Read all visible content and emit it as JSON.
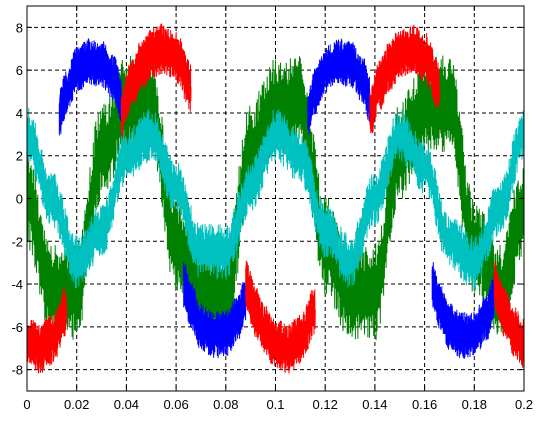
{
  "chart_data": {
    "type": "line",
    "title": "",
    "xlabel": "",
    "ylabel": "",
    "xlim": [
      0,
      0.2
    ],
    "ylim": [
      -9,
      9
    ],
    "grid": true,
    "grid_style": "dashed",
    "x_ticks": [
      0,
      0.02,
      0.04,
      0.06,
      0.08,
      0.1,
      0.12,
      0.14,
      0.16,
      0.18,
      0.2
    ],
    "x_tick_labels": [
      "0",
      "0.02",
      "0.04",
      "0.06",
      "0.08",
      "0.1",
      "0.12",
      "0.14",
      "0.16",
      "0.18",
      "0.2"
    ],
    "y_ticks": [
      -8,
      -6,
      -4,
      -2,
      0,
      2,
      4,
      6,
      8
    ],
    "y_tick_labels": [
      "-8",
      "-6",
      "-4",
      "-2",
      "0",
      "2",
      "4",
      "6",
      "8"
    ],
    "series": [
      {
        "color": "#0000ff",
        "description": "segments of a 50 Hz sinusoid of amplitude ~6.5 with heavy ripple",
        "x": [
          0.013,
          0.016,
          0.02,
          0.025,
          0.03,
          0.035,
          0.038,
          0.063,
          0.066,
          0.07,
          0.075,
          0.08,
          0.085,
          0.088,
          0.113,
          0.116,
          0.12,
          0.125,
          0.13,
          0.135,
          0.138,
          0.163,
          0.166,
          0.17,
          0.175,
          0.18,
          0.185,
          0.188
        ],
        "y": [
          4.0,
          5.0,
          6.0,
          6.4,
          6.3,
          5.6,
          4.6,
          -4.0,
          -5.0,
          -6.0,
          -6.4,
          -6.3,
          -5.6,
          -4.6,
          4.0,
          5.0,
          6.0,
          6.4,
          6.3,
          5.6,
          4.6,
          -4.0,
          -5.0,
          -6.0,
          -6.4,
          -6.3,
          -5.6,
          -4.6
        ]
      },
      {
        "color": "#ff0000",
        "description": "segments of a 50 Hz sinusoid of amplitude ~7 with ripple",
        "x": [
          0.0,
          0.005,
          0.01,
          0.016,
          0.038,
          0.042,
          0.046,
          0.05,
          0.055,
          0.06,
          0.066,
          0.088,
          0.092,
          0.096,
          0.1,
          0.105,
          0.11,
          0.116,
          0.138,
          0.142,
          0.146,
          0.15,
          0.155,
          0.16,
          0.166,
          0.188,
          0.192,
          0.196,
          0.2
        ],
        "y": [
          -6.6,
          -7.0,
          -6.6,
          -5.2,
          4.0,
          5.3,
          6.2,
          6.8,
          7.0,
          6.6,
          5.2,
          -4.0,
          -5.3,
          -6.2,
          -6.8,
          -7.0,
          -6.6,
          -5.2,
          4.0,
          5.3,
          6.2,
          6.8,
          7.0,
          6.6,
          5.2,
          -4.0,
          -5.3,
          -6.2,
          -6.8
        ]
      },
      {
        "color": "#008000",
        "description": "noisy 50 Hz sinusoid, amplitude ~5, high-frequency ripple",
        "x": [
          0.0,
          0.01,
          0.02,
          0.03,
          0.04,
          0.05,
          0.06,
          0.07,
          0.08,
          0.09,
          0.1,
          0.11,
          0.12,
          0.13,
          0.14,
          0.15,
          0.16,
          0.17,
          0.18,
          0.19,
          0.2
        ],
        "y": [
          0.0,
          -4.4,
          -4.4,
          2.2,
          4.4,
          4.4,
          -2.2,
          -4.4,
          -4.4,
          2.2,
          4.4,
          4.4,
          -2.2,
          -4.4,
          -4.4,
          2.2,
          4.4,
          4.4,
          -2.2,
          -4.4,
          -0.5
        ]
      },
      {
        "color": "#00c0c0",
        "description": "noisy 50 Hz sinusoid, amplitude ~3, high-frequency ripple",
        "x": [
          0.0,
          0.01,
          0.02,
          0.03,
          0.04,
          0.05,
          0.06,
          0.07,
          0.08,
          0.09,
          0.1,
          0.11,
          0.12,
          0.13,
          0.14,
          0.15,
          0.16,
          0.17,
          0.18,
          0.19,
          0.2
        ],
        "y": [
          3.0,
          0.0,
          -3.0,
          -1.5,
          2.0,
          3.0,
          0.5,
          -2.5,
          -2.5,
          0.5,
          3.0,
          2.0,
          -1.5,
          -3.0,
          0.0,
          3.0,
          1.5,
          -2.0,
          -3.0,
          -0.5,
          3.0
        ]
      }
    ]
  }
}
